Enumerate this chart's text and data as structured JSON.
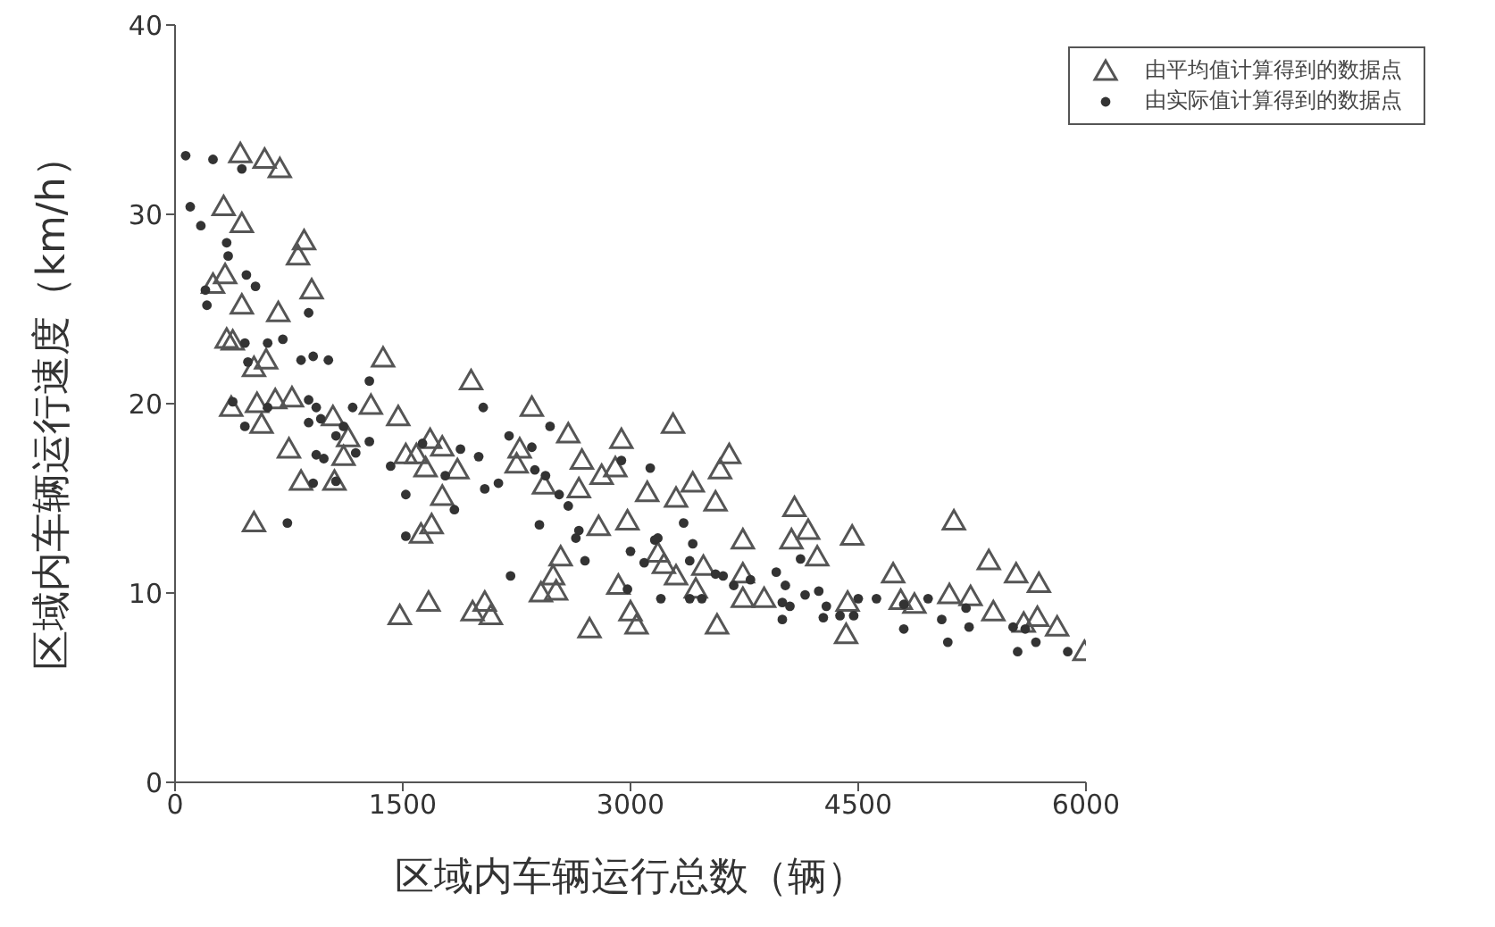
{
  "chart_data": {
    "type": "scatter",
    "xlabel": "区域内车辆运行总数（辆）",
    "ylabel": "区域内车辆运行速度（km/h）",
    "xlim": [
      0,
      6000
    ],
    "xticks": [
      0,
      1500,
      3000,
      4500,
      6000
    ],
    "ylim": [
      0,
      40
    ],
    "yticks": [
      0,
      10,
      20,
      30,
      40
    ],
    "grid": false,
    "legend": "top right",
    "series": [
      {
        "name": "由平均值计算得到的数据点",
        "color": "#555555",
        "marker": "triangle",
        "x": [
          430,
          590,
          690,
          320,
          440,
          850,
          810,
          250,
          330,
          440,
          900,
          680,
          380,
          340,
          520,
          600,
          1370,
          370,
          540,
          660,
          770,
          1290,
          1470,
          1040,
          1140,
          570,
          750,
          1110,
          830,
          1050,
          520,
          1520,
          1480,
          1950,
          2350,
          1680,
          1760,
          1590,
          1650,
          1860,
          2590,
          2940,
          2680,
          2810,
          2900,
          2270,
          2250,
          2430,
          2660,
          3110,
          1760,
          1690,
          1620,
          2790,
          2980,
          3180,
          2540,
          2490,
          2410,
          2510,
          2920,
          1670,
          1960,
          2040,
          2080,
          2730,
          3000,
          3040,
          3280,
          3650,
          3590,
          3410,
          3300,
          3560,
          4080,
          4170,
          4060,
          4460,
          4230,
          3740,
          3220,
          3300,
          3480,
          3430,
          3740,
          3740,
          3880,
          3570,
          4430,
          4420,
          4730,
          5130,
          4780,
          4870,
          5100,
          5240,
          5360,
          5540,
          5690,
          5390,
          5590,
          5680,
          5810,
          5990
        ],
        "values": [
          33.2,
          32.9,
          32.4,
          30.4,
          29.5,
          28.6,
          27.8,
          26.3,
          26.8,
          25.2,
          26.0,
          24.8,
          23.3,
          23.4,
          21.9,
          22.3,
          22.4,
          19.8,
          20.0,
          20.2,
          20.3,
          19.9,
          19.3,
          19.3,
          18.2,
          18.9,
          17.6,
          17.2,
          15.9,
          15.9,
          13.7,
          17.3,
          8.8,
          21.2,
          19.8,
          18.1,
          17.7,
          17.3,
          16.6,
          16.5,
          18.4,
          18.1,
          17.0,
          16.2,
          16.6,
          17.6,
          16.8,
          15.7,
          15.5,
          15.3,
          15.1,
          13.6,
          13.1,
          13.5,
          13.8,
          12.1,
          11.9,
          10.9,
          10.0,
          10.1,
          10.4,
          9.5,
          9.0,
          9.5,
          8.8,
          8.1,
          9.0,
          8.3,
          18.9,
          17.3,
          16.5,
          15.8,
          15.0,
          14.8,
          14.5,
          13.3,
          12.8,
          13.0,
          11.9,
          12.8,
          11.5,
          10.9,
          11.4,
          10.2,
          11.0,
          9.7,
          9.7,
          8.3,
          9.5,
          7.8,
          11.0,
          13.8,
          9.6,
          9.4,
          9.9,
          9.8,
          11.7,
          11.0,
          10.5,
          9.0,
          8.4,
          8.7,
          8.2,
          6.9
        ]
      },
      {
        "name": "由实际值计算得到的数据点",
        "color": "#333333",
        "marker": "circle",
        "x": [
          70,
          250,
          440,
          100,
          170,
          340,
          350,
          470,
          530,
          200,
          210,
          880,
          460,
          610,
          710,
          480,
          830,
          910,
          1010,
          1280,
          380,
          610,
          880,
          930,
          1170,
          460,
          880,
          960,
          1110,
          1060,
          1280,
          1190,
          930,
          980,
          910,
          1060,
          740,
          1420,
          1520,
          1520,
          2030,
          2470,
          2200,
          2000,
          1880,
          2350,
          1630,
          2370,
          2040,
          2130,
          2440,
          2530,
          2590,
          1840,
          1780,
          3130,
          2940,
          2400,
          2660,
          2640,
          3000,
          2700,
          3090,
          3180,
          2210,
          2980,
          3350,
          3410,
          3160,
          3390,
          3200,
          3390,
          3470,
          3560,
          3610,
          3680,
          3790,
          3960,
          4020,
          4120,
          4000,
          4050,
          4000,
          4150,
          4240,
          4290,
          4270,
          4380,
          4470,
          4500,
          4620,
          4800,
          4960,
          4800,
          5050,
          5090,
          5210,
          5230,
          5520,
          5600,
          5670,
          5550,
          5880
        ],
        "values": [
          33.1,
          32.9,
          32.4,
          30.4,
          29.4,
          28.5,
          27.8,
          26.8,
          26.2,
          26.0,
          25.2,
          24.8,
          23.2,
          23.2,
          23.4,
          22.2,
          22.3,
          22.5,
          22.3,
          21.2,
          20.1,
          19.8,
          20.2,
          19.8,
          19.8,
          18.8,
          19.0,
          19.2,
          18.8,
          18.3,
          18.0,
          17.4,
          17.3,
          17.1,
          15.8,
          15.9,
          13.7,
          16.7,
          15.2,
          13.0,
          19.8,
          18.8,
          18.3,
          17.2,
          17.6,
          17.7,
          17.9,
          16.5,
          15.5,
          15.8,
          16.2,
          15.2,
          14.6,
          14.4,
          16.2,
          16.6,
          17.0,
          13.6,
          13.3,
          12.9,
          12.2,
          11.7,
          11.6,
          12.9,
          10.9,
          10.2,
          13.7,
          12.6,
          12.8,
          11.7,
          9.7,
          9.7,
          9.7,
          11.0,
          10.9,
          10.4,
          10.7,
          11.1,
          10.4,
          11.8,
          9.5,
          9.3,
          8.6,
          9.9,
          10.1,
          9.3,
          8.7,
          8.8,
          8.8,
          9.7,
          9.7,
          9.4,
          9.7,
          8.1,
          8.6,
          7.4,
          9.2,
          8.2,
          8.2,
          8.1,
          7.4,
          6.9,
          6.9
        ]
      }
    ]
  }
}
